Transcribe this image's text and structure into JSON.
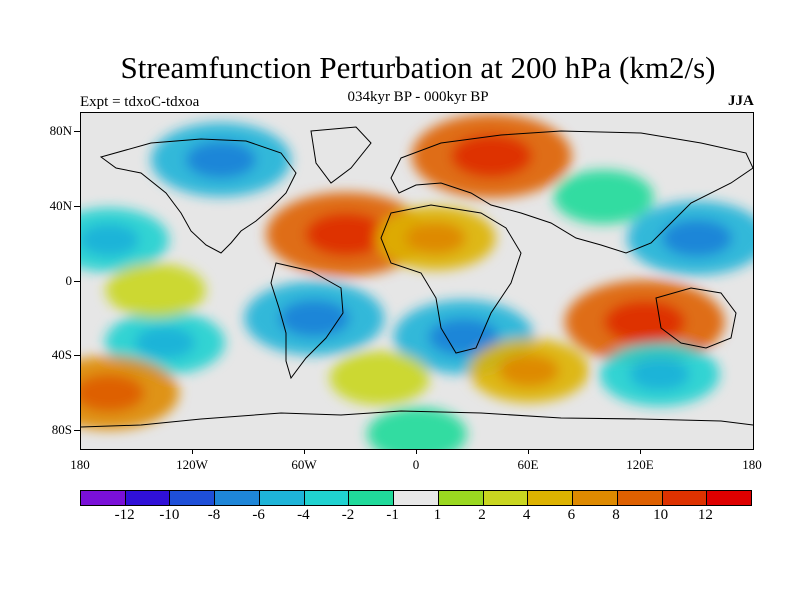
{
  "title": "Streamfunction Perturbation at 200 hPa (km2/s)",
  "subtitle": "034kyr BP - 000kyr BP",
  "expt_label": "Expt = tdxoC-tdxoa",
  "season": "JJA",
  "lat_labels": [
    "80N",
    "40N",
    "0",
    "40S",
    "80S"
  ],
  "lon_labels": [
    "180",
    "120W",
    "60W",
    "0",
    "60E",
    "120E",
    "180"
  ],
  "colorbar": {
    "colors": [
      "#7a10d8",
      "#3010d8",
      "#1e4fd8",
      "#1e86d8",
      "#1eb4d8",
      "#20d2d0",
      "#20da9a",
      "#e8e8e8",
      "#9ad820",
      "#c9d620",
      "#ddb200",
      "#de8a00",
      "#de6000",
      "#de3200",
      "#de0000"
    ],
    "labels": [
      "-12",
      "-10",
      "-8",
      "-6",
      "-4",
      "-2",
      "-1",
      "1",
      "2",
      "4",
      "6",
      "8",
      "10",
      "12"
    ]
  },
  "chart_data": {
    "type": "heatmap",
    "variable": "Streamfunction Perturbation at 200 hPa",
    "units": "km2/s",
    "xlim": [
      -180,
      180
    ],
    "ylim": [
      -90,
      90
    ],
    "contour_levels": [
      -12,
      -10,
      -8,
      -6,
      -4,
      -2,
      -1,
      1,
      2,
      4,
      6,
      8,
      10,
      12
    ],
    "anomalies": [
      {
        "center": [
          -105,
          65
        ],
        "value": -6
      },
      {
        "center": [
          40,
          67
        ],
        "value": 8
      },
      {
        "center": [
          -38,
          25
        ],
        "value": 8
      },
      {
        "center": [
          10,
          23
        ],
        "value": 4
      },
      {
        "center": [
          -165,
          22
        ],
        "value": -4
      },
      {
        "center": [
          150,
          23
        ],
        "value": -6
      },
      {
        "center": [
          -55,
          -20
        ],
        "value": -6
      },
      {
        "center": [
          25,
          -30
        ],
        "value": -6
      },
      {
        "center": [
          -135,
          -33
        ],
        "value": -4
      },
      {
        "center": [
          122,
          -22
        ],
        "value": 8
      },
      {
        "center": [
          130,
          -50
        ],
        "value": -4
      },
      {
        "center": [
          -165,
          -60
        ],
        "value": 6
      },
      {
        "center": [
          60,
          -48
        ],
        "value": 4
      },
      {
        "center": [
          -140,
          -5
        ],
        "value": 2
      },
      {
        "center": [
          -20,
          -52
        ],
        "value": 2
      },
      {
        "center": [
          100,
          45
        ],
        "value": -2
      },
      {
        "center": [
          0,
          -82
        ],
        "value": -2
      }
    ]
  }
}
